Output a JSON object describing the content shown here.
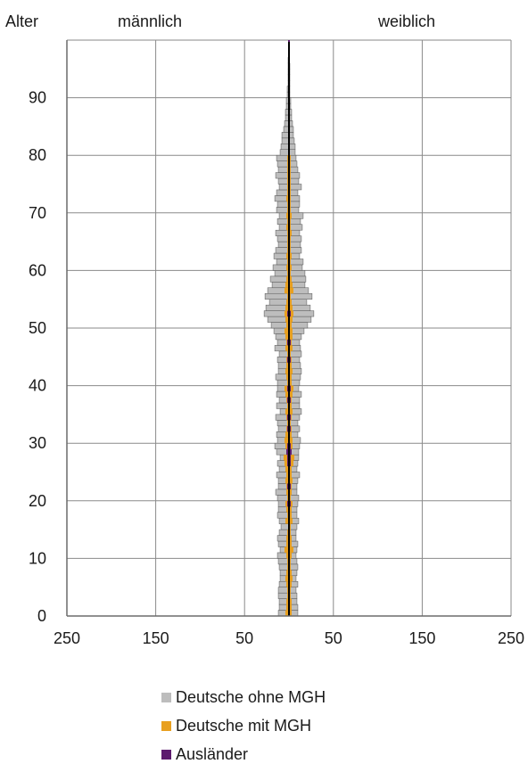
{
  "chart_data": {
    "type": "bar",
    "subtype": "population-pyramid",
    "axes": {
      "y_title": "Alter",
      "x_left_title": "männlich",
      "x_right_title": "weiblich",
      "y_ticks": [
        0,
        10,
        20,
        30,
        40,
        50,
        60,
        70,
        80,
        90
      ],
      "x_ticks": [
        {
          "value": -250,
          "label": "250"
        },
        {
          "value": -150,
          "label": "150"
        },
        {
          "value": -50,
          "label": "50"
        },
        {
          "value": 50,
          "label": "50"
        },
        {
          "value": 150,
          "label": "150"
        },
        {
          "value": 250,
          "label": "250"
        }
      ],
      "xlim": [
        -250,
        250
      ],
      "ylim": [
        0,
        100
      ],
      "grid": true
    },
    "legend": {
      "placement": "bottom-center",
      "entries": [
        {
          "name": "Deutsche ohne MGH",
          "color": "#bdbdbd"
        },
        {
          "name": "Deutsche mit MGH",
          "color": "#e8a020"
        },
        {
          "name": "Ausländer",
          "color": "#5c1a6e"
        }
      ]
    },
    "colors": {
      "ohne": "#bdbdbd",
      "mit": "#e8a020",
      "auslaender": "#5c1a6e"
    },
    "series": [
      {
        "name": "Deutsche ohne MGH",
        "male": [
          12,
          11,
          11,
          12,
          12,
          11,
          10,
          10,
          11,
          12,
          13,
          10,
          12,
          13,
          11,
          9,
          11,
          13,
          12,
          12,
          13,
          15,
          12,
          12,
          14,
          11,
          13,
          10,
          14,
          16,
          13,
          14,
          12,
          13,
          15,
          10,
          14,
          11,
          14,
          13,
          13,
          15,
          12,
          12,
          13,
          11,
          16,
          13,
          15,
          17,
          20,
          24,
          28,
          26,
          22,
          27,
          24,
          19,
          21,
          16,
          18,
          14,
          17,
          15,
          12,
          13,
          15,
          11,
          13,
          11,
          14,
          13,
          16,
          14,
          11,
          12,
          15,
          12,
          13,
          14,
          10,
          9,
          8,
          8,
          6,
          5,
          4,
          4,
          3,
          3,
          2,
          2,
          1,
          1,
          1,
          1,
          1,
          0,
          0,
          0
        ],
        "female": [
          10,
          10,
          9,
          9,
          8,
          10,
          8,
          9,
          10,
          9,
          8,
          9,
          10,
          8,
          8,
          9,
          11,
          9,
          9,
          10,
          11,
          9,
          9,
          10,
          12,
          9,
          10,
          11,
          11,
          12,
          13,
          10,
          12,
          10,
          12,
          14,
          12,
          12,
          14,
          11,
          12,
          13,
          14,
          13,
          12,
          14,
          13,
          12,
          14,
          17,
          21,
          25,
          28,
          24,
          20,
          26,
          22,
          18,
          19,
          18,
          15,
          16,
          12,
          14,
          13,
          14,
          12,
          15,
          13,
          16,
          11,
          12,
          12,
          10,
          14,
          11,
          12,
          10,
          9,
          8,
          7,
          7,
          6,
          5,
          5,
          4,
          3,
          3,
          2,
          2,
          1,
          1,
          1,
          1,
          1,
          1,
          0,
          0,
          0,
          0
        ]
      },
      {
        "name": "Deutsche mit MGH",
        "male": [
          4,
          3,
          3,
          2,
          2,
          3,
          4,
          3,
          2,
          2,
          3,
          5,
          3,
          3,
          2,
          1,
          4,
          2,
          3,
          4,
          2,
          3,
          3,
          4,
          3,
          4,
          5,
          6,
          3,
          4,
          5,
          4,
          3,
          2,
          3,
          4,
          2,
          3,
          4,
          5,
          2,
          3,
          4,
          3,
          3,
          2,
          4,
          3,
          4,
          5,
          3,
          4,
          5,
          4,
          3,
          2,
          5,
          4,
          3,
          2,
          3,
          2,
          3,
          2,
          2,
          2,
          2,
          3,
          2,
          3,
          2,
          2,
          3,
          2,
          2,
          2,
          2,
          2,
          2,
          2,
          1,
          1,
          1,
          1,
          1,
          1,
          0,
          1,
          0,
          0,
          0,
          0,
          0,
          0,
          0,
          0,
          0,
          0,
          0,
          0
        ],
        "female": [
          3,
          3,
          3,
          2,
          2,
          3,
          4,
          3,
          2,
          2,
          3,
          5,
          3,
          3,
          2,
          2,
          4,
          3,
          3,
          4,
          2,
          3,
          3,
          4,
          3,
          3,
          5,
          6,
          3,
          4,
          4,
          3,
          3,
          2,
          3,
          4,
          3,
          3,
          4,
          5,
          3,
          3,
          4,
          3,
          3,
          2,
          4,
          3,
          4,
          4,
          3,
          4,
          5,
          4,
          3,
          2,
          5,
          4,
          3,
          2,
          3,
          2,
          3,
          2,
          2,
          2,
          3,
          2,
          2,
          3,
          2,
          2,
          2,
          2,
          2,
          2,
          2,
          2,
          2,
          2,
          1,
          1,
          1,
          1,
          1,
          1,
          0,
          1,
          0,
          0,
          0,
          0,
          0,
          0,
          0,
          0,
          0,
          0,
          0,
          0
        ]
      },
      {
        "name": "Ausländer",
        "male": [
          1,
          1,
          1,
          1,
          1,
          1,
          1,
          1,
          1,
          1,
          1,
          1,
          1,
          1,
          1,
          1,
          1,
          1,
          1,
          2,
          1,
          1,
          2,
          1,
          1,
          1,
          2,
          2,
          3,
          2,
          1,
          1,
          2,
          1,
          2,
          1,
          1,
          2,
          1,
          2,
          1,
          1,
          1,
          1,
          2,
          1,
          1,
          2,
          1,
          1,
          1,
          1,
          2,
          1,
          1,
          1,
          1,
          1,
          1,
          1,
          1,
          1,
          1,
          1,
          1,
          1,
          1,
          1,
          1,
          1,
          1,
          1,
          1,
          1,
          1,
          1,
          1,
          1,
          1,
          1,
          1,
          1,
          1,
          1,
          1,
          1,
          1,
          1,
          1,
          1,
          1,
          1,
          1,
          1,
          1,
          1,
          1,
          1,
          1,
          1
        ],
        "female": [
          1,
          1,
          1,
          1,
          1,
          1,
          1,
          1,
          1,
          1,
          1,
          1,
          1,
          1,
          1,
          1,
          1,
          1,
          1,
          2,
          1,
          1,
          2,
          1,
          1,
          1,
          2,
          2,
          3,
          2,
          1,
          1,
          2,
          1,
          2,
          1,
          1,
          2,
          1,
          2,
          1,
          1,
          1,
          1,
          2,
          1,
          1,
          2,
          1,
          1,
          1,
          1,
          2,
          1,
          1,
          1,
          1,
          1,
          1,
          1,
          1,
          1,
          1,
          1,
          1,
          1,
          1,
          1,
          1,
          1,
          1,
          1,
          1,
          1,
          1,
          1,
          1,
          1,
          1,
          1,
          1,
          1,
          1,
          1,
          1,
          1,
          1,
          1,
          1,
          1,
          1,
          1,
          1,
          1,
          1,
          1,
          1,
          1,
          1,
          1
        ]
      }
    ]
  }
}
